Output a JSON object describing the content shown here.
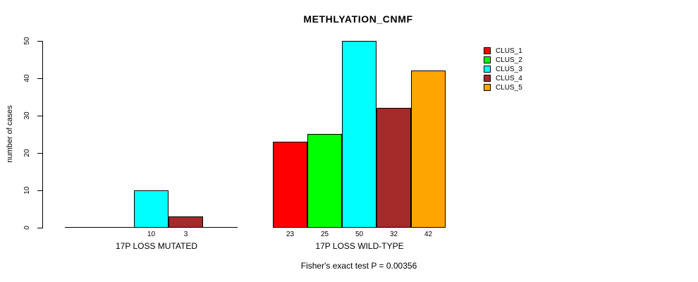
{
  "chart_data": {
    "type": "bar",
    "title": "METHLYATION_CNMF",
    "ylabel": "number of cases",
    "ylim": [
      0,
      50
    ],
    "yticks": [
      0,
      10,
      20,
      30,
      40,
      50
    ],
    "grid": false,
    "legend_position": "right",
    "legend": [
      {
        "name": "CLUS_1",
        "color": "#ff0000"
      },
      {
        "name": "CLUS_2",
        "color": "#00ff00"
      },
      {
        "name": "CLUS_3",
        "color": "#00ffff"
      },
      {
        "name": "CLUS_4",
        "color": "#a52a2a"
      },
      {
        "name": "CLUS_5",
        "color": "#ffa500"
      }
    ],
    "groups": [
      {
        "label": "17P LOSS MUTATED",
        "values": [
          0,
          0,
          10,
          3,
          0
        ],
        "bar_labels": [
          "",
          "",
          "10",
          "3",
          ""
        ]
      },
      {
        "label": "17P LOSS WILD-TYPE",
        "values": [
          23,
          25,
          50,
          32,
          42
        ],
        "bar_labels": [
          "23",
          "25",
          "50",
          "32",
          "42"
        ]
      }
    ],
    "annotation": "Fisher's exact test P = 0.00356"
  }
}
